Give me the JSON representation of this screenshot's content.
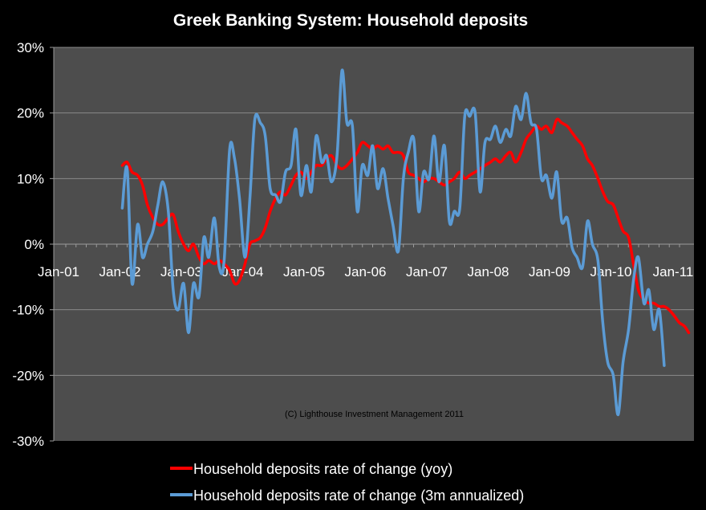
{
  "chart_data": {
    "type": "line",
    "title": "Greek Banking System: Household deposits",
    "xlabel": "",
    "ylabel": "",
    "ylim": [
      -30,
      30
    ],
    "xlim": [
      2001.0,
      2011.15
    ],
    "y_ticks": [
      30,
      20,
      10,
      0,
      -10,
      -20,
      -30
    ],
    "y_tick_labels": [
      "30%",
      "20%",
      "10%",
      "0%",
      "-10%",
      "-20%",
      "-30%"
    ],
    "x_ticks": [
      2001,
      2002,
      2003,
      2004,
      2005,
      2006,
      2007,
      2008,
      2009,
      2010,
      2011
    ],
    "x_tick_labels": [
      "Jan-01",
      "Jan-02",
      "Jan-03",
      "Jan-04",
      "Jan-05",
      "Jan-06",
      "Jan-07",
      "Jan-08",
      "Jan-09",
      "Jan-10",
      "Jan-11"
    ],
    "grid": true,
    "annotation": "(C) Lighthouse  Investment  Management 2011",
    "legend_position": "bottom",
    "series": [
      {
        "name": "Household deposits rate of change (yoy)",
        "color": "#ff0000",
        "points": [
          [
            2001.92,
            12
          ],
          [
            2002.0,
            12.5
          ],
          [
            2002.08,
            11
          ],
          [
            2002.17,
            10.5
          ],
          [
            2002.25,
            9
          ],
          [
            2002.33,
            6
          ],
          [
            2002.42,
            4
          ],
          [
            2002.5,
            3
          ],
          [
            2002.58,
            3
          ],
          [
            2002.67,
            4
          ],
          [
            2002.75,
            4.5
          ],
          [
            2002.83,
            2
          ],
          [
            2002.92,
            0
          ],
          [
            2003.0,
            -1
          ],
          [
            2003.08,
            0
          ],
          [
            2003.17,
            -2
          ],
          [
            2003.25,
            -3
          ],
          [
            2003.33,
            -2.5
          ],
          [
            2003.42,
            -3
          ],
          [
            2003.5,
            -2.5
          ],
          [
            2003.58,
            -3
          ],
          [
            2003.67,
            -4
          ],
          [
            2003.75,
            -6
          ],
          [
            2003.83,
            -5.5
          ],
          [
            2003.92,
            -3
          ],
          [
            2004.0,
            0
          ],
          [
            2004.08,
            0.5
          ],
          [
            2004.17,
            1
          ],
          [
            2004.25,
            2.5
          ],
          [
            2004.33,
            5
          ],
          [
            2004.42,
            7
          ],
          [
            2004.5,
            8
          ],
          [
            2004.58,
            7.5
          ],
          [
            2004.67,
            9
          ],
          [
            2004.75,
            10.5
          ],
          [
            2004.83,
            11
          ],
          [
            2004.92,
            10
          ],
          [
            2005.0,
            11
          ],
          [
            2005.08,
            12
          ],
          [
            2005.17,
            12
          ],
          [
            2005.25,
            13
          ],
          [
            2005.33,
            13.5
          ],
          [
            2005.42,
            12
          ],
          [
            2005.5,
            11.5
          ],
          [
            2005.58,
            12
          ],
          [
            2005.67,
            13
          ],
          [
            2005.75,
            14
          ],
          [
            2005.83,
            15.5
          ],
          [
            2005.92,
            15
          ],
          [
            2006.0,
            14.5
          ],
          [
            2006.08,
            15
          ],
          [
            2006.17,
            14.5
          ],
          [
            2006.25,
            15
          ],
          [
            2006.33,
            14
          ],
          [
            2006.42,
            14
          ],
          [
            2006.5,
            13.5
          ],
          [
            2006.58,
            11
          ],
          [
            2006.67,
            10.5
          ],
          [
            2006.75,
            10
          ],
          [
            2006.83,
            9.5
          ],
          [
            2006.92,
            10
          ],
          [
            2007.0,
            10
          ],
          [
            2007.08,
            9.5
          ],
          [
            2007.17,
            9
          ],
          [
            2007.25,
            9.5
          ],
          [
            2007.33,
            10
          ],
          [
            2007.42,
            11
          ],
          [
            2007.5,
            10
          ],
          [
            2007.58,
            10.5
          ],
          [
            2007.67,
            11
          ],
          [
            2007.75,
            11.5
          ],
          [
            2007.83,
            12
          ],
          [
            2007.92,
            12.5
          ],
          [
            2008.0,
            13
          ],
          [
            2008.08,
            12.5
          ],
          [
            2008.17,
            13.5
          ],
          [
            2008.25,
            14
          ],
          [
            2008.33,
            12.5
          ],
          [
            2008.42,
            14
          ],
          [
            2008.5,
            16
          ],
          [
            2008.58,
            17
          ],
          [
            2008.67,
            18
          ],
          [
            2008.75,
            17.5
          ],
          [
            2008.83,
            18
          ],
          [
            2008.92,
            17
          ],
          [
            2009.0,
            19
          ],
          [
            2009.08,
            18.5
          ],
          [
            2009.17,
            18
          ],
          [
            2009.25,
            17
          ],
          [
            2009.33,
            16
          ],
          [
            2009.42,
            15
          ],
          [
            2009.5,
            13
          ],
          [
            2009.58,
            12
          ],
          [
            2009.67,
            10
          ],
          [
            2009.75,
            8
          ],
          [
            2009.83,
            6.5
          ],
          [
            2009.92,
            6
          ],
          [
            2010.0,
            4
          ],
          [
            2010.08,
            2
          ],
          [
            2010.17,
            1
          ],
          [
            2010.25,
            -3
          ],
          [
            2010.33,
            -7
          ],
          [
            2010.42,
            -8.5
          ],
          [
            2010.5,
            -9
          ],
          [
            2010.58,
            -9
          ],
          [
            2010.67,
            -9.5
          ],
          [
            2010.75,
            -9.5
          ],
          [
            2010.83,
            -10
          ],
          [
            2010.92,
            -11
          ],
          [
            2011.0,
            -12
          ],
          [
            2011.08,
            -12.5
          ],
          [
            2011.15,
            -13.5
          ]
        ]
      },
      {
        "name": "Household deposits rate of change (3m annualized)",
        "color": "#5b9bd5",
        "points": [
          [
            2001.92,
            5.5
          ],
          [
            2002.0,
            11.5
          ],
          [
            2002.08,
            -6
          ],
          [
            2002.17,
            3
          ],
          [
            2002.25,
            -2
          ],
          [
            2002.33,
            0
          ],
          [
            2002.42,
            2
          ],
          [
            2002.5,
            6
          ],
          [
            2002.58,
            9.5
          ],
          [
            2002.67,
            5
          ],
          [
            2002.75,
            -7
          ],
          [
            2002.83,
            -10
          ],
          [
            2002.92,
            -6
          ],
          [
            2003.0,
            -13.5
          ],
          [
            2003.08,
            -6
          ],
          [
            2003.17,
            -8
          ],
          [
            2003.25,
            1
          ],
          [
            2003.33,
            -2
          ],
          [
            2003.42,
            4
          ],
          [
            2003.5,
            -3.5
          ],
          [
            2003.58,
            -2.5
          ],
          [
            2003.67,
            14.5
          ],
          [
            2003.75,
            13
          ],
          [
            2003.83,
            7
          ],
          [
            2003.92,
            -2
          ],
          [
            2004.0,
            7
          ],
          [
            2004.08,
            19
          ],
          [
            2004.17,
            18.5
          ],
          [
            2004.25,
            16.5
          ],
          [
            2004.33,
            8.5
          ],
          [
            2004.42,
            7.5
          ],
          [
            2004.5,
            6.5
          ],
          [
            2004.58,
            11
          ],
          [
            2004.67,
            12
          ],
          [
            2004.75,
            17.5
          ],
          [
            2004.83,
            7.5
          ],
          [
            2004.92,
            12
          ],
          [
            2005.0,
            8
          ],
          [
            2005.08,
            16.5
          ],
          [
            2005.17,
            12.5
          ],
          [
            2005.25,
            13.5
          ],
          [
            2005.33,
            9.5
          ],
          [
            2005.42,
            13.5
          ],
          [
            2005.5,
            26.5
          ],
          [
            2005.58,
            18.5
          ],
          [
            2005.67,
            18
          ],
          [
            2005.75,
            5
          ],
          [
            2005.83,
            12
          ],
          [
            2005.92,
            10.5
          ],
          [
            2006.0,
            15
          ],
          [
            2006.08,
            8.5
          ],
          [
            2006.17,
            11.5
          ],
          [
            2006.25,
            7
          ],
          [
            2006.33,
            3
          ],
          [
            2006.42,
            -1
          ],
          [
            2006.5,
            10
          ],
          [
            2006.58,
            14
          ],
          [
            2006.67,
            16
          ],
          [
            2006.75,
            5
          ],
          [
            2006.83,
            11
          ],
          [
            2006.92,
            10
          ],
          [
            2007.0,
            16.5
          ],
          [
            2007.08,
            9.5
          ],
          [
            2007.17,
            15
          ],
          [
            2007.25,
            3.5
          ],
          [
            2007.33,
            5
          ],
          [
            2007.42,
            5.5
          ],
          [
            2007.5,
            19.5
          ],
          [
            2007.58,
            19.5
          ],
          [
            2007.67,
            20
          ],
          [
            2007.75,
            8
          ],
          [
            2007.83,
            15.5
          ],
          [
            2007.92,
            16
          ],
          [
            2008.0,
            18
          ],
          [
            2008.08,
            15.5
          ],
          [
            2008.17,
            17.5
          ],
          [
            2008.25,
            16.5
          ],
          [
            2008.33,
            21
          ],
          [
            2008.42,
            19
          ],
          [
            2008.5,
            23
          ],
          [
            2008.58,
            18.5
          ],
          [
            2008.67,
            17.5
          ],
          [
            2008.75,
            10
          ],
          [
            2008.83,
            10.5
          ],
          [
            2008.92,
            7
          ],
          [
            2009.0,
            11
          ],
          [
            2009.08,
            3.5
          ],
          [
            2009.17,
            4
          ],
          [
            2009.25,
            -0.5
          ],
          [
            2009.33,
            -2
          ],
          [
            2009.42,
            -3.5
          ],
          [
            2009.5,
            3.5
          ],
          [
            2009.58,
            0
          ],
          [
            2009.67,
            -2.5
          ],
          [
            2009.75,
            -12
          ],
          [
            2009.83,
            -18
          ],
          [
            2009.92,
            -20
          ],
          [
            2010.0,
            -26
          ],
          [
            2010.08,
            -18
          ],
          [
            2010.17,
            -13
          ],
          [
            2010.25,
            -5.5
          ],
          [
            2010.33,
            -2
          ],
          [
            2010.42,
            -9
          ],
          [
            2010.5,
            -7
          ],
          [
            2010.58,
            -13
          ],
          [
            2010.67,
            -10
          ],
          [
            2010.75,
            -18.5
          ]
        ]
      }
    ]
  }
}
